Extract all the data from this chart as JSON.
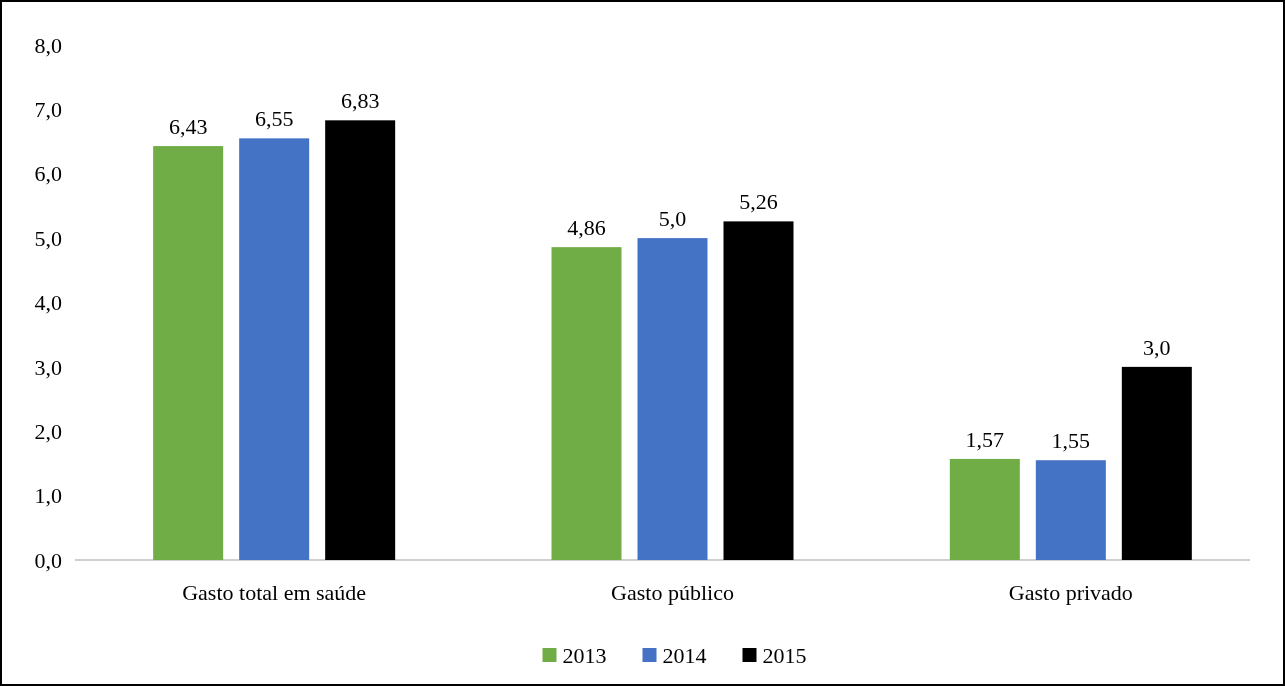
{
  "chart_data": {
    "type": "bar",
    "categories": [
      "Gasto total em saúde",
      "Gasto público",
      "Gasto privado"
    ],
    "series": [
      {
        "name": "2013",
        "color": "#70ad47",
        "values": [
          6.43,
          4.86,
          1.57
        ],
        "value_labels": [
          "6,43",
          "4,86",
          "1,57"
        ]
      },
      {
        "name": "2014",
        "color": "#4472c4",
        "values": [
          6.55,
          5.0,
          1.55
        ],
        "value_labels": [
          "6,55",
          "5,0",
          "1,55"
        ]
      },
      {
        "name": "2015",
        "color": "#000000",
        "values": [
          6.83,
          5.26,
          3.0
        ],
        "value_labels": [
          "6,83",
          "5,26",
          "3,0"
        ]
      }
    ],
    "ylim": [
      0,
      8
    ],
    "yticks": [
      {
        "value": 0,
        "label": "0,0"
      },
      {
        "value": 1,
        "label": "1,0"
      },
      {
        "value": 2,
        "label": "2,0"
      },
      {
        "value": 3,
        "label": "3,0"
      },
      {
        "value": 4,
        "label": "4,0"
      },
      {
        "value": 5,
        "label": "5,0"
      },
      {
        "value": 6,
        "label": "6,0"
      },
      {
        "value": 7,
        "label": "7,0"
      },
      {
        "value": 8,
        "label": "8,0"
      }
    ],
    "grid": false,
    "legend": "bottom"
  }
}
